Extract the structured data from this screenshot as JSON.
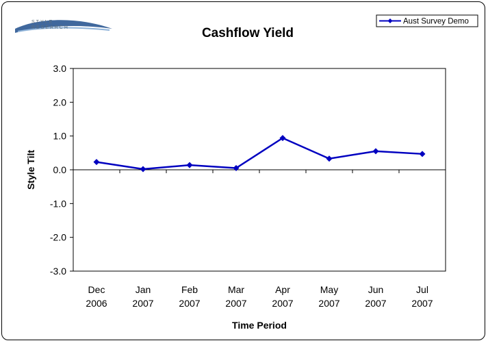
{
  "logo": {
    "line1": "STYLE",
    "line2": "RESEARCH"
  },
  "chart_data": {
    "type": "line",
    "title": "Cashflow Yield",
    "xlabel": "Time Period",
    "ylabel": "Style Tilt",
    "categories": [
      [
        "Dec",
        "2006"
      ],
      [
        "Jan",
        "2007"
      ],
      [
        "Feb",
        "2007"
      ],
      [
        "Mar",
        "2007"
      ],
      [
        "Apr",
        "2007"
      ],
      [
        "May",
        "2007"
      ],
      [
        "Jun",
        "2007"
      ],
      [
        "Jul",
        "2007"
      ]
    ],
    "series": [
      {
        "name": "Aust Survey Demo",
        "color": "#0000c0",
        "values": [
          0.23,
          0.02,
          0.14,
          0.05,
          0.94,
          0.33,
          0.55,
          0.47
        ]
      }
    ],
    "yticks": [
      "3.0",
      "2.0",
      "1.0",
      "0.0",
      "-1.0",
      "-2.0",
      "-3.0"
    ],
    "ylim": [
      -3,
      3
    ],
    "grid": false,
    "legend": "top-right",
    "marker": "diamond"
  }
}
